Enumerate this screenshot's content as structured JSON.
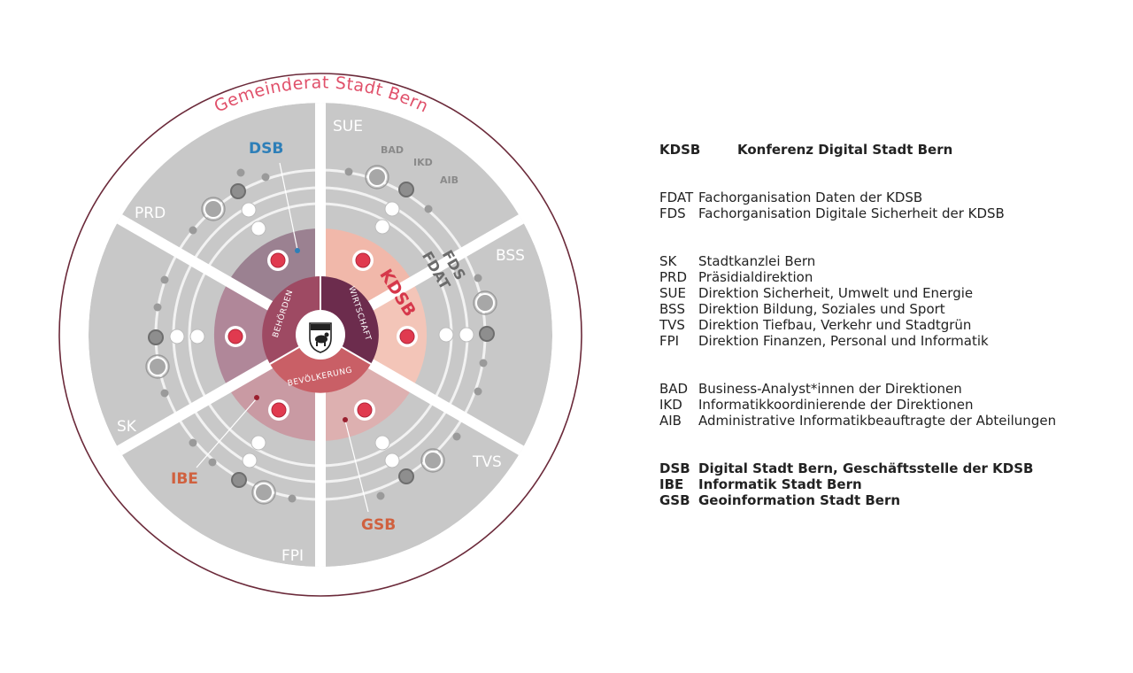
{
  "diagram": {
    "title": "Gemeinderat Stadt Bern",
    "center_label": "KDSB",
    "fachorganisationen": [
      "FDS",
      "FDAT"
    ],
    "sectors": [
      "SUE",
      "BSS",
      "TVS",
      "FPI",
      "SK",
      "PRD"
    ],
    "core_labels": [
      "BEHÖRDEN",
      "WIRTSCHAFT",
      "BEVÖLKERUNG"
    ],
    "roles": [
      "BAD",
      "IKD",
      "AIB"
    ],
    "units": [
      "DSB",
      "IBE",
      "GSB"
    ],
    "colors": {
      "title": "#e0506a",
      "outer_ring": "#6b2a3a",
      "sector": "#c8c8c8",
      "dsb": "#2e7fb8",
      "ibe": "#d0613f",
      "gsb": "#d0613f",
      "kdsb": "#d6384b",
      "core_behoerden": "#9e4a63",
      "core_wirtschaft": "#6c2c4d",
      "core_bevoelkerung": "#c95f66"
    }
  },
  "legend": {
    "groups": [
      {
        "style": "bold-wide",
        "items": [
          {
            "abbr": "KDSB",
            "desc": "Konferenz Digital Stadt Bern"
          }
        ]
      },
      {
        "style": "normal",
        "items": [
          {
            "abbr": "FDAT",
            "desc": "Fachorganisation Daten der KDSB"
          },
          {
            "abbr": "FDS",
            "desc": "Fachorganisation Digitale Sicherheit der KDSB"
          }
        ]
      },
      {
        "style": "normal",
        "items": [
          {
            "abbr": "SK",
            "desc": "Stadtkanzlei Bern"
          },
          {
            "abbr": "PRD",
            "desc": "Präsidialdirektion"
          },
          {
            "abbr": "SUE",
            "desc": "Direktion Sicherheit, Umwelt und Energie"
          },
          {
            "abbr": "BSS",
            "desc": "Direktion Bildung, Soziales und Sport"
          },
          {
            "abbr": "TVS",
            "desc": "Direktion Tiefbau, Verkehr und Stadtgrün"
          },
          {
            "abbr": "FPI",
            "desc": "Direktion Finanzen, Personal und Informatik"
          }
        ]
      },
      {
        "style": "normal",
        "items": [
          {
            "abbr": "BAD",
            "desc": "Business-Analyst*innen der Direktionen"
          },
          {
            "abbr": "IKD",
            "desc": "Informatikkoordinierende der Direktionen"
          },
          {
            "abbr": "AIB",
            "desc": "Administrative Informatikbeauftragte der Abteilungen"
          }
        ]
      },
      {
        "style": "bold",
        "items": [
          {
            "abbr": "DSB",
            "desc": "Digital Stadt Bern, Geschäftsstelle der KDSB"
          },
          {
            "abbr": "IBE",
            "desc": "Informatik Stadt Bern"
          },
          {
            "abbr": "GSB",
            "desc": "Geoinformation Stadt Bern"
          }
        ]
      }
    ]
  }
}
